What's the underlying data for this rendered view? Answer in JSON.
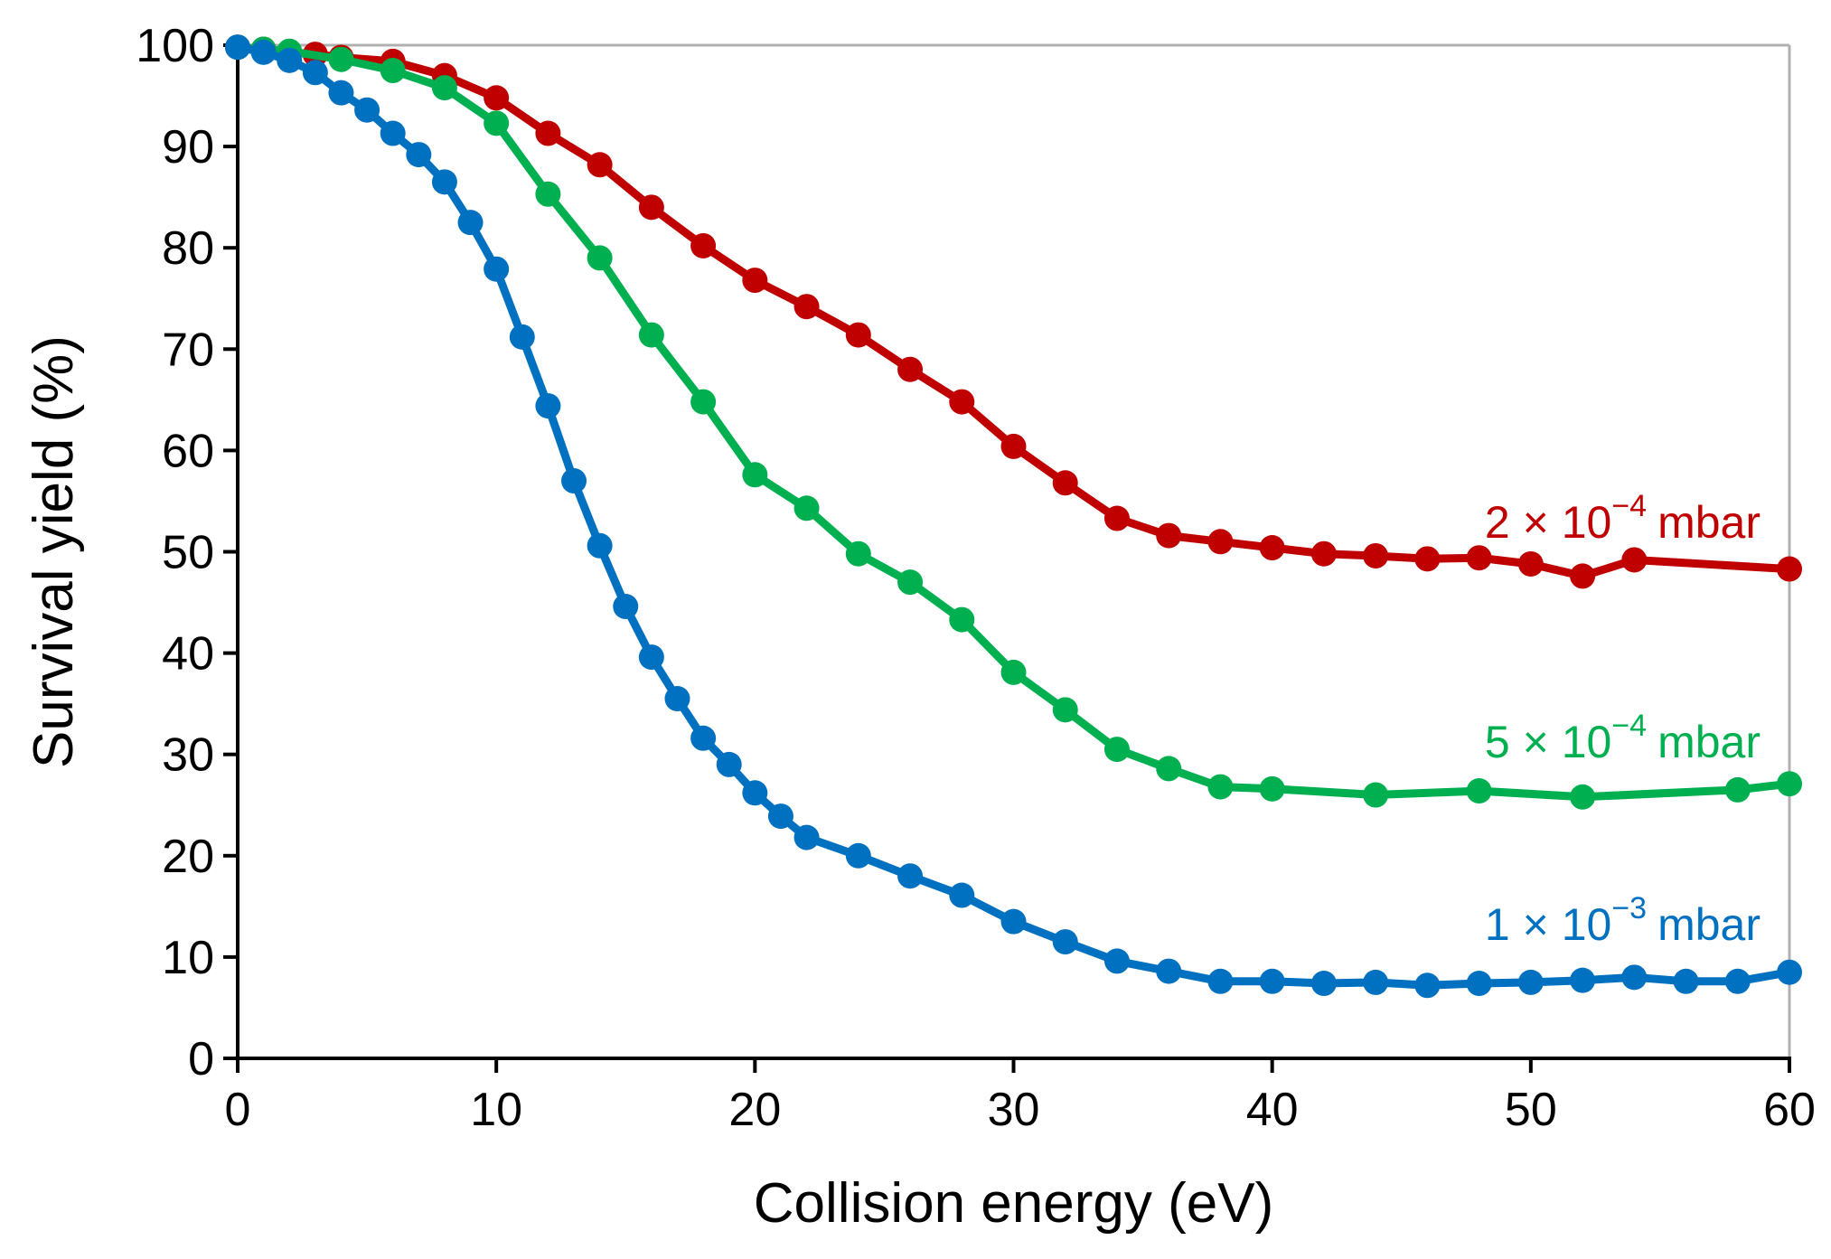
{
  "chart_data": {
    "type": "line",
    "title": "",
    "xlabel": "Collision energy (eV)",
    "ylabel": "Survival yield (%)",
    "xlim": [
      0,
      60
    ],
    "ylim": [
      0,
      100
    ],
    "xticks": [
      0,
      10,
      20,
      30,
      40,
      50,
      60
    ],
    "yticks": [
      0,
      10,
      20,
      30,
      40,
      50,
      60,
      70,
      80,
      90,
      100
    ],
    "grid": false,
    "legend": "inline labels at right end of each series",
    "series": [
      {
        "name": "2 × 10−4 mbar",
        "label": {
          "prefix": "2 × 10",
          "exponent": "−4",
          "unit": "mbar"
        },
        "color": "#c00000",
        "x": [
          0,
          1,
          2,
          3,
          4,
          6,
          8,
          10,
          12,
          14,
          16,
          18,
          20,
          22,
          24,
          26,
          28,
          30,
          32,
          34,
          36,
          38,
          40,
          42,
          44,
          46,
          48,
          50,
          52,
          54,
          60
        ],
        "values": [
          99.8,
          99.6,
          99.3,
          99.1,
          98.8,
          98.4,
          97.0,
          94.8,
          91.3,
          88.2,
          84.0,
          80.2,
          76.8,
          74.2,
          71.4,
          68.0,
          64.8,
          60.4,
          56.8,
          53.3,
          51.6,
          51.0,
          50.4,
          49.8,
          49.6,
          49.3,
          49.4,
          48.8,
          47.6,
          49.2,
          48.3
        ]
      },
      {
        "name": "5 × 10−4 mbar",
        "label": {
          "prefix": "5 × 10",
          "exponent": "−4",
          "unit": "mbar"
        },
        "color": "#00b050",
        "x": [
          0,
          1,
          2,
          4,
          6,
          8,
          10,
          12,
          14,
          16,
          18,
          20,
          22,
          24,
          26,
          28,
          30,
          32,
          34,
          36,
          38,
          40,
          44,
          48,
          52,
          58,
          60
        ],
        "values": [
          99.8,
          99.6,
          99.4,
          98.6,
          97.5,
          95.8,
          92.3,
          85.3,
          79.0,
          71.4,
          64.8,
          57.6,
          54.3,
          49.8,
          47.0,
          43.3,
          38.1,
          34.4,
          30.5,
          28.6,
          26.8,
          26.6,
          26.0,
          26.4,
          25.8,
          26.5,
          27.1
        ]
      },
      {
        "name": "1 × 10−3 mbar",
        "label": {
          "prefix": "1 × 10",
          "exponent": "−3",
          "unit": "mbar"
        },
        "color": "#0070c0",
        "x": [
          0,
          1,
          2,
          3,
          4,
          5,
          6,
          7,
          8,
          9,
          10,
          11,
          12,
          13,
          14,
          15,
          16,
          17,
          18,
          19,
          20,
          21,
          22,
          24,
          26,
          28,
          30,
          32,
          34,
          36,
          38,
          40,
          42,
          44,
          46,
          48,
          50,
          52,
          54,
          56,
          58,
          60
        ],
        "values": [
          99.8,
          99.3,
          98.5,
          97.3,
          95.3,
          93.6,
          91.3,
          89.2,
          86.5,
          82.5,
          77.9,
          71.2,
          64.4,
          57.0,
          50.6,
          44.6,
          39.6,
          35.5,
          31.6,
          29.0,
          26.2,
          23.9,
          21.8,
          20.0,
          18.0,
          16.1,
          13.5,
          11.5,
          9.6,
          8.6,
          7.6,
          7.6,
          7.4,
          7.5,
          7.2,
          7.4,
          7.5,
          7.7,
          8.0,
          7.6,
          7.6,
          8.5
        ]
      }
    ]
  }
}
